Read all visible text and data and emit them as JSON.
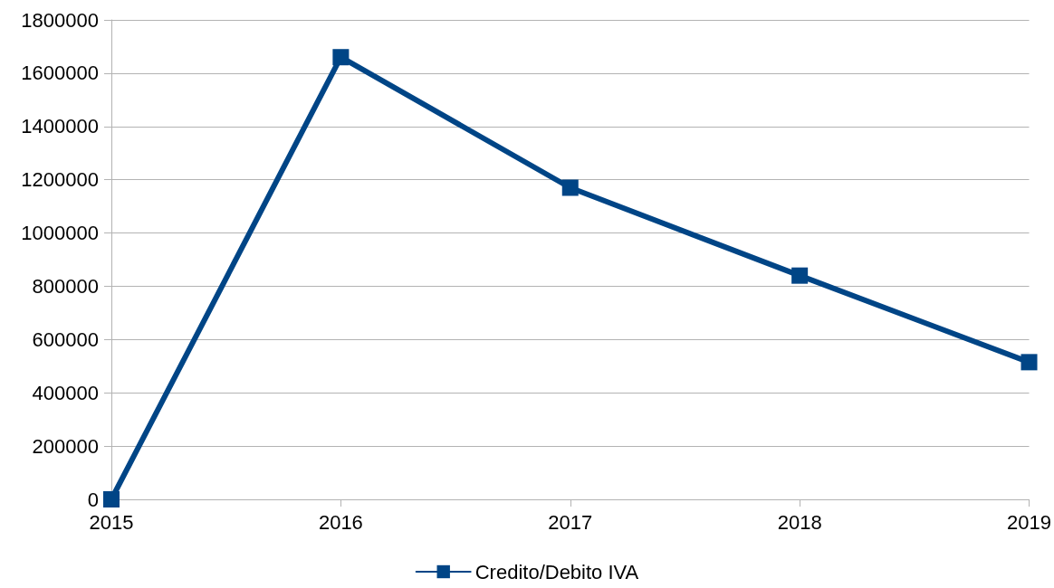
{
  "chart_data": {
    "type": "line",
    "categories": [
      "2015",
      "2016",
      "2017",
      "2018",
      "2019"
    ],
    "series": [
      {
        "name": "Credito/Debito IVA",
        "color": "#004586",
        "values": [
          0,
          1660000,
          1170000,
          840000,
          515000
        ]
      }
    ],
    "ylim": [
      0,
      1800000
    ],
    "yticks": [
      0,
      200000,
      400000,
      600000,
      800000,
      1000000,
      1200000,
      1400000,
      1600000,
      1800000
    ],
    "grid": "y",
    "legend": "bottom",
    "marker": "square",
    "line_style": "solid"
  }
}
